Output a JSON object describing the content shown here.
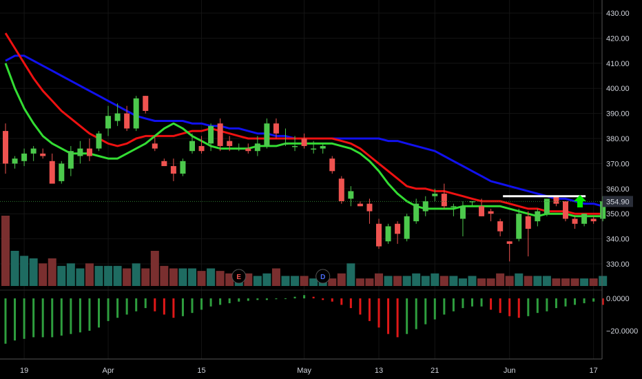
{
  "chart_data": {
    "type": "candlestick",
    "price_axis": {
      "ylim": [
        323,
        434
      ],
      "ticks": [
        "430.00",
        "420.00",
        "410.00",
        "400.00",
        "390.00",
        "380.00",
        "370.00",
        "360.00",
        "350.00",
        "340.00",
        "330.00"
      ]
    },
    "last_price": "354.90",
    "resistance_level": 357,
    "x_axis": {
      "labels": [
        {
          "i": 2,
          "text": "19"
        },
        {
          "i": 11,
          "text": "Apr"
        },
        {
          "i": 21,
          "text": "15"
        },
        {
          "i": 32,
          "text": "May"
        },
        {
          "i": 40,
          "text": "13"
        },
        {
          "i": 46,
          "text": "21"
        },
        {
          "i": 54,
          "text": "Jun"
        },
        {
          "i": 63,
          "text": "17"
        }
      ]
    },
    "candles": [
      [
        383.0,
        386.0,
        366.0,
        370.0
      ],
      [
        370.0,
        373.0,
        368.0,
        372.0
      ],
      [
        371.0,
        376.0,
        369.0,
        374.0
      ],
      [
        374.0,
        377.0,
        371.0,
        376.0
      ],
      [
        374.0,
        376.0,
        372.0,
        373.0
      ],
      [
        371.0,
        374.0,
        362.0,
        362.0
      ],
      [
        363.0,
        371.0,
        362.0,
        370.0
      ],
      [
        368.0,
        377.0,
        365.0,
        375.0
      ],
      [
        373.0,
        379.0,
        370.0,
        376.0
      ],
      [
        376.0,
        380.0,
        371.0,
        373.0
      ],
      [
        376.0,
        383.0,
        375.0,
        382.0
      ],
      [
        384.0,
        393.0,
        381.0,
        389.0
      ],
      [
        387.0,
        394.0,
        385.0,
        390.0
      ],
      [
        390.0,
        393.0,
        383.0,
        384.0
      ],
      [
        384.0,
        397.0,
        383.0,
        396.0
      ],
      [
        397.0,
        397.0,
        390.0,
        391.0
      ],
      [
        378.0,
        381.0,
        375.0,
        376.0
      ],
      [
        371.0,
        372.0,
        369.0,
        369.0
      ],
      [
        369.0,
        372.0,
        363.0,
        366.0
      ],
      [
        366.0,
        372.0,
        365.0,
        371.0
      ],
      [
        375.0,
        382.0,
        374.0,
        379.0
      ],
      [
        377.0,
        381.0,
        374.0,
        375.0
      ],
      [
        378.0,
        386.0,
        375.0,
        385.0
      ],
      [
        386.0,
        388.0,
        375.0,
        377.0
      ],
      [
        379.0,
        381.0,
        375.0,
        377.0
      ],
      [
        376.0,
        378.0,
        375.0,
        376.0
      ],
      [
        376.0,
        378.0,
        374.0,
        375.0
      ],
      [
        375.0,
        381.0,
        373.0,
        378.0
      ],
      [
        377.0,
        388.0,
        376.0,
        386.0
      ],
      [
        386.0,
        388.0,
        380.0,
        382.0
      ],
      [
        378.0,
        384.0,
        377.0,
        378.0
      ],
      [
        377.0,
        381.0,
        375.0,
        377.0
      ],
      [
        380.0,
        382.0,
        376.0,
        377.0
      ],
      [
        376.0,
        379.0,
        374.0,
        376.0
      ],
      [
        376.0,
        378.0,
        374.0,
        377.0
      ],
      [
        372.0,
        373.0,
        366.0,
        367.0
      ],
      [
        364.0,
        365.0,
        354.0,
        355.0
      ],
      [
        356.0,
        361.0,
        353.0,
        359.0
      ],
      [
        354.0,
        355.0,
        353.0,
        353.0
      ],
      [
        354.0,
        356.0,
        346.0,
        351.0
      ],
      [
        346.0,
        348.0,
        336.0,
        337.0
      ],
      [
        339.0,
        346.0,
        338.0,
        345.0
      ],
      [
        346.0,
        347.0,
        338.0,
        342.0
      ],
      [
        340.0,
        350.0,
        339.0,
        349.0
      ],
      [
        347.0,
        356.0,
        346.0,
        354.0
      ],
      [
        351.0,
        357.0,
        349.0,
        355.0
      ],
      [
        357.0,
        360.0,
        355.0,
        358.0
      ],
      [
        358.0,
        362.0,
        352.0,
        353.0
      ],
      [
        353.0,
        354.0,
        349.0,
        353.0
      ],
      [
        348.0,
        355.0,
        341.0,
        353.0
      ],
      [
        355.0,
        355.0,
        353.0,
        355.0
      ],
      [
        353.0,
        356.0,
        349.0,
        349.0
      ],
      [
        351.0,
        352.0,
        347.0,
        350.0
      ],
      [
        347.0,
        348.0,
        341.0,
        343.0
      ],
      [
        339.0,
        339.0,
        331.0,
        338.0
      ],
      [
        340.0,
        352.0,
        339.0,
        350.0
      ],
      [
        349.0,
        351.0,
        333.0,
        344.0
      ],
      [
        347.0,
        352.0,
        345.0,
        351.0
      ],
      [
        350.0,
        356.0,
        349.0,
        356.0
      ],
      [
        357.0,
        357.0,
        353.0,
        354.0
      ],
      [
        355.0,
        355.0,
        347.0,
        348.0
      ],
      [
        348.0,
        349.0,
        344.0,
        346.0
      ],
      [
        346.0,
        350.0,
        345.0,
        350.0
      ],
      [
        348.0,
        349.0,
        346.0,
        347.0
      ],
      [
        348.0,
        357.0,
        347.0,
        355.0
      ]
    ],
    "volume": [
      28,
      14,
      12,
      11,
      9,
      11,
      8,
      9,
      7,
      9,
      8,
      8,
      8,
      7,
      9,
      7,
      14,
      8,
      7,
      7,
      7,
      6,
      7,
      6,
      5,
      4,
      5,
      4,
      5,
      7,
      4,
      4,
      4,
      3,
      3,
      3,
      5,
      9,
      3,
      3,
      5,
      4,
      4,
      4,
      5,
      4,
      5,
      4,
      4,
      3,
      4,
      3,
      3,
      5,
      4,
      5,
      4,
      4,
      4,
      3,
      3,
      3,
      3,
      3,
      4
    ],
    "indicators": {
      "ema_green": [
        410,
        400,
        392,
        386,
        381,
        378,
        376,
        374,
        374,
        374,
        373,
        372,
        372,
        374,
        376,
        378,
        381,
        384,
        386,
        384,
        381,
        379,
        377,
        376,
        376,
        376,
        376,
        377,
        377,
        377,
        378,
        378,
        378,
        378,
        378,
        378,
        377,
        376,
        374,
        371,
        367,
        362,
        358,
        355,
        353,
        352,
        352,
        352,
        352,
        353,
        353,
        353,
        353,
        353,
        352,
        351,
        350,
        349,
        350,
        350,
        350,
        349,
        349,
        349,
        349
      ],
      "ema_red": [
        422,
        416,
        410,
        404,
        399,
        395,
        391,
        388,
        385,
        382,
        380,
        378,
        377,
        378,
        380,
        381,
        381,
        381,
        381,
        382,
        383,
        383,
        384,
        383,
        382,
        381,
        380,
        380,
        380,
        380,
        380,
        380,
        380,
        380,
        380,
        380,
        379,
        378,
        376,
        373,
        370,
        367,
        364,
        361,
        360,
        360,
        359,
        359,
        358,
        357,
        356,
        355,
        355,
        355,
        354,
        353,
        352,
        352,
        351,
        351,
        351,
        350,
        350,
        350,
        350
      ],
      "ema_blue": [
        411,
        413,
        413,
        411,
        409,
        407,
        405,
        403,
        401,
        399,
        397,
        395,
        393,
        391,
        389,
        388,
        387,
        387,
        387,
        387,
        386,
        386,
        385,
        385,
        384,
        384,
        383,
        382,
        382,
        381,
        381,
        380,
        380,
        380,
        380,
        380,
        380,
        380,
        380,
        380,
        380,
        379,
        379,
        378,
        377,
        376,
        375,
        373,
        371,
        369,
        367,
        365,
        363,
        362,
        361,
        360,
        359,
        358,
        357,
        356,
        356,
        355,
        354,
        354,
        353
      ]
    },
    "oscillator": {
      "ticks": [
        "0.0000",
        "−20.0000"
      ],
      "values": [
        -28,
        -26,
        -25,
        -24,
        -24,
        -24,
        -23,
        -22,
        -21,
        -20,
        -18,
        -14,
        -12,
        -10,
        -8,
        -6,
        -8,
        -10,
        -12,
        -11,
        -9,
        -7,
        -5,
        -4,
        -3,
        -2,
        -1.5,
        -1,
        -1,
        -0.5,
        0,
        1,
        2,
        1,
        -1,
        -2,
        -4,
        -6,
        -10,
        -14,
        -18,
        -22,
        -24,
        -22,
        -19,
        -16,
        -13,
        -10,
        -8,
        -6,
        -5,
        -5,
        -7,
        -9,
        -11,
        -12,
        -11,
        -9,
        -8,
        -6,
        -5,
        -4,
        -3,
        -2,
        -4
      ]
    },
    "event_markers": [
      {
        "i": 25,
        "label": "E"
      },
      {
        "i": 34,
        "label": "D"
      }
    ],
    "colors": {
      "up": "#26a69a",
      "up_bright": "#4cc94c",
      "down": "#ef5350",
      "vol_up": "#1e6b61",
      "vol_down": "#7a2f2f",
      "ema_green": "#33dd33",
      "ema_red": "#ee1111",
      "ema_blue": "#1111ee",
      "price_tag": "#2a2e39",
      "arrow": "#00ee00",
      "grid": "#141414"
    }
  }
}
